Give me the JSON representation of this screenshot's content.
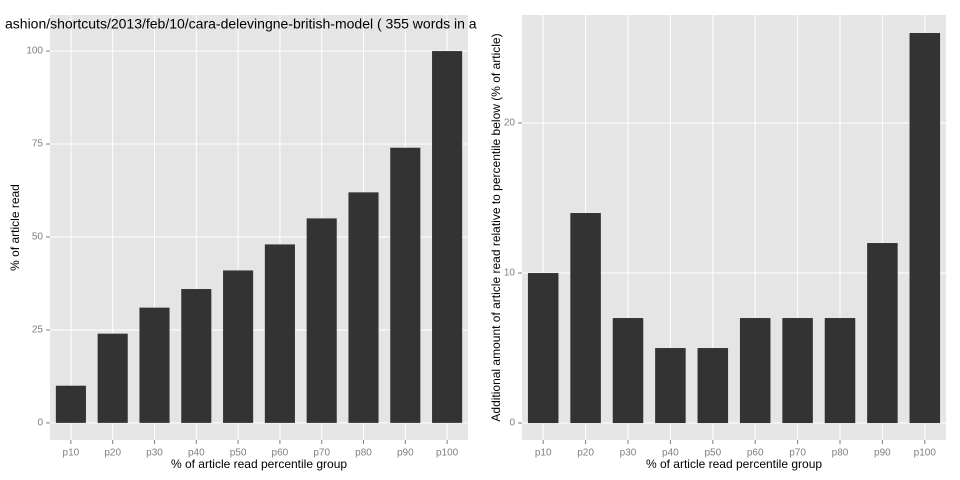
{
  "chart_data": [
    {
      "type": "bar",
      "title": "ashion/shortcuts/2013/feb/10/cara-delevingne-british-model ( 355 words in a",
      "categories": [
        "p10",
        "p20",
        "p30",
        "p40",
        "p50",
        "p60",
        "p70",
        "p80",
        "p90",
        "p100"
      ],
      "values": [
        10,
        24,
        31,
        36,
        41,
        48,
        55,
        62,
        74,
        100
      ],
      "color": "#333333",
      "x_label": "% of article read percentile group",
      "y_label": "% of article read",
      "ylim": [
        -4.6,
        109.7
      ],
      "yticks": [
        0,
        25,
        50,
        75,
        100
      ],
      "grid": true
    },
    {
      "type": "bar",
      "categories": [
        "p10",
        "p20",
        "p30",
        "p40",
        "p50",
        "p60",
        "p70",
        "p80",
        "p90",
        "p100"
      ],
      "values": [
        10,
        14,
        7,
        5,
        5,
        7,
        7,
        7,
        12,
        26
      ],
      "color": "#333333",
      "x_label": "% of article read percentile group",
      "y_label": "Additional amount of article read relative to percentile below (% of article)",
      "ylim": [
        -1.13,
        27.2
      ],
      "yticks": [
        0,
        10,
        20
      ],
      "grid": true
    }
  ]
}
